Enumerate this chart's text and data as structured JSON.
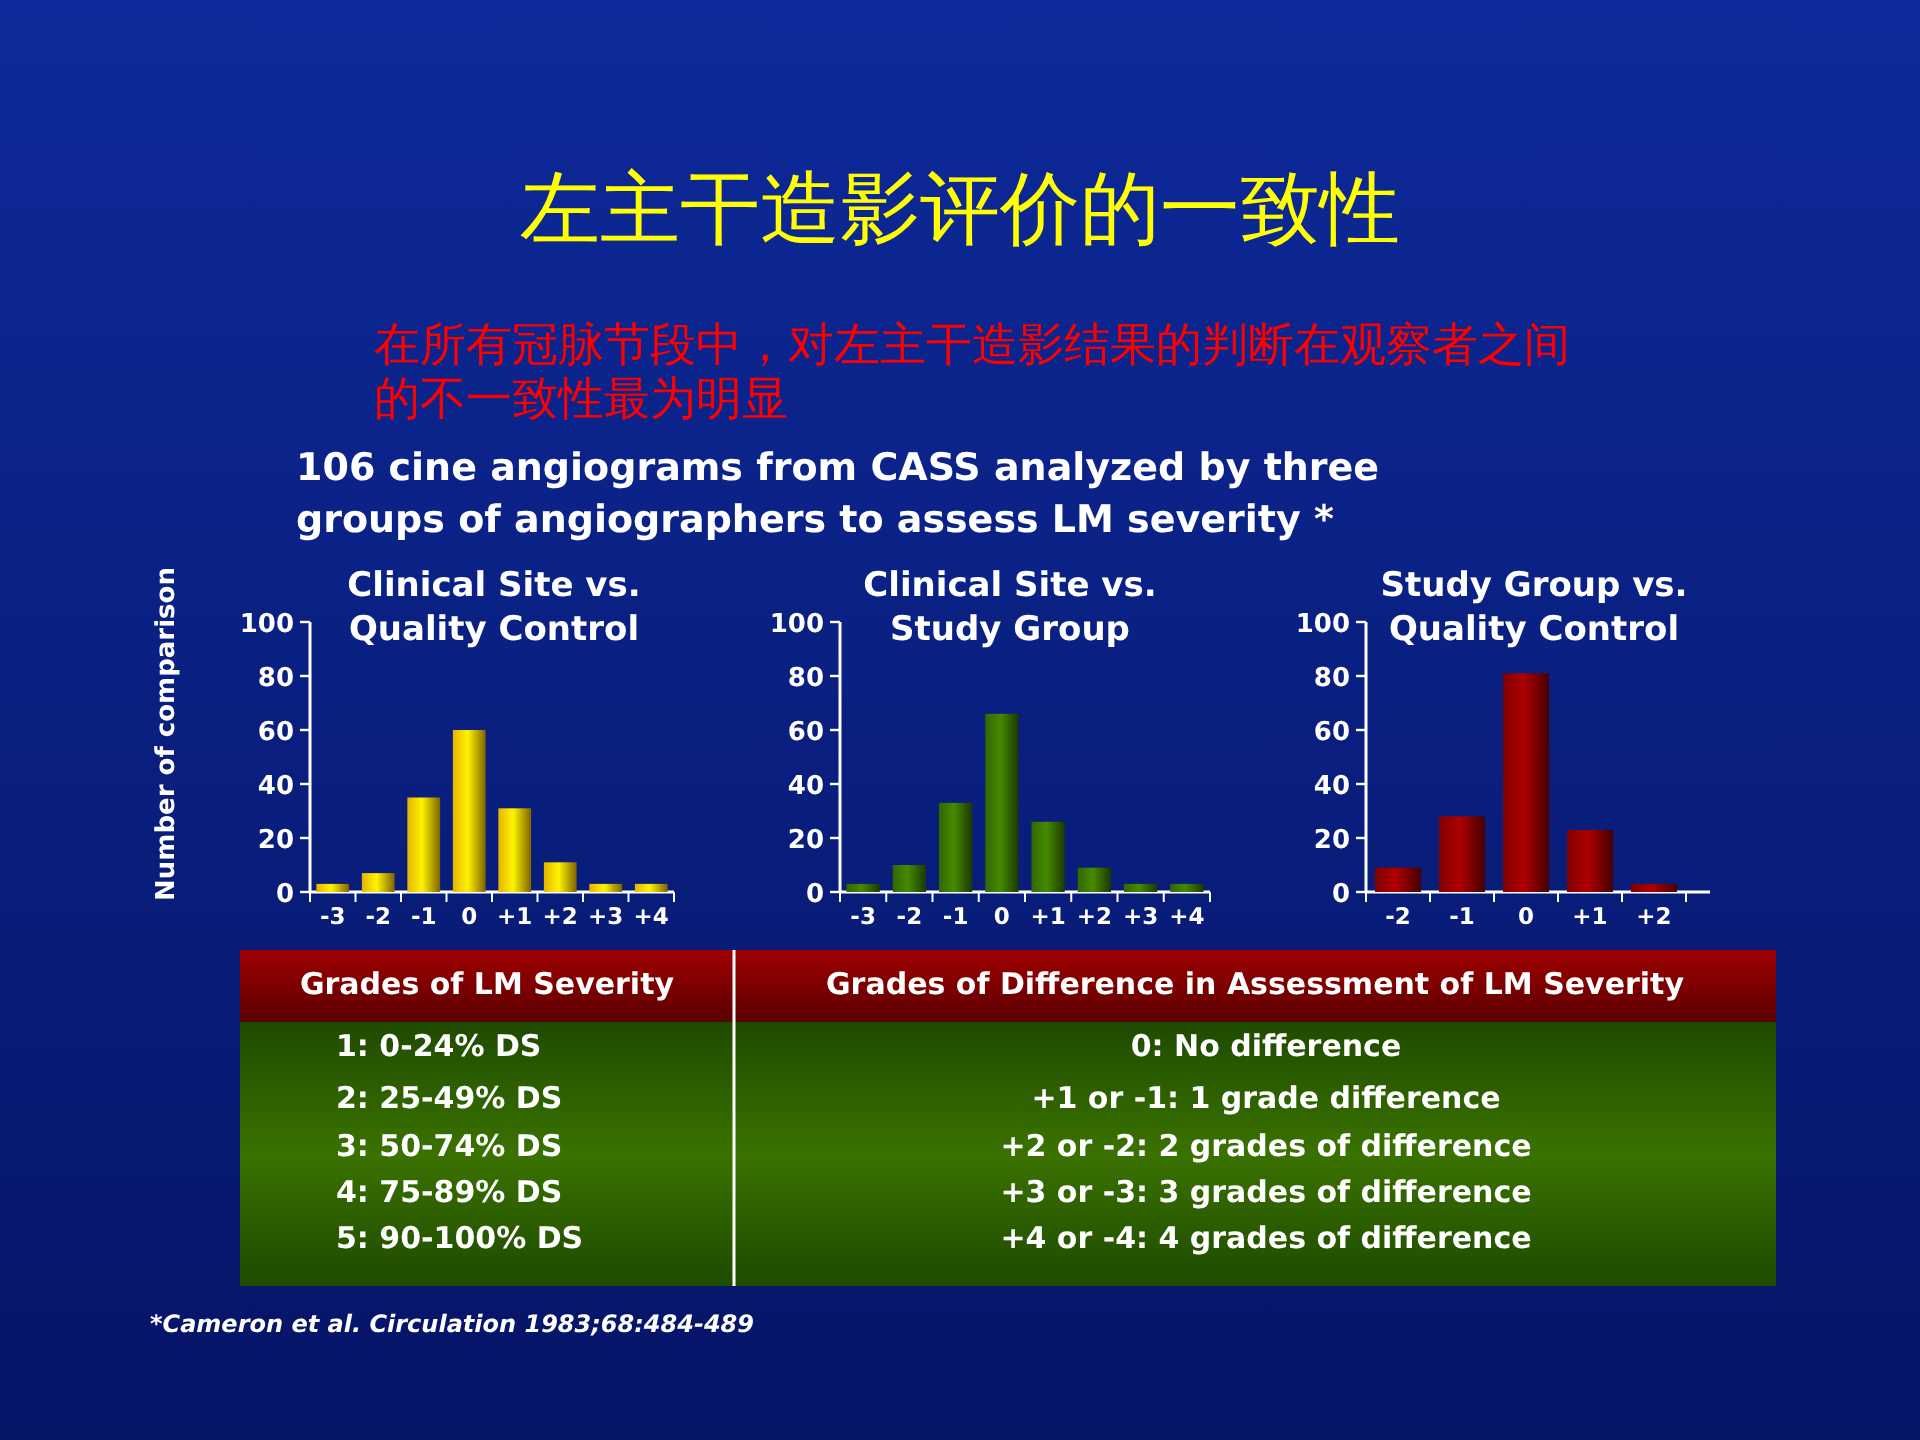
{
  "chart_data": [
    {
      "type": "other",
      "title": "左主干造影评价的一致性",
      "subtitle": "在所有冠脉节段中，对左主干造影结果的判断在观察者之间的不一致性最为明显",
      "annotations": [
        "106 cine angiograms from CASS analyzed by three groups of angiographers to assess LM severity *"
      ]
    },
    {
      "type": "bar",
      "title": "Clinical Site vs. Quality Control",
      "ylabel": "Number of comparison",
      "categories": [
        "-3",
        "-2",
        "-1",
        "0",
        "+1",
        "+2",
        "+3",
        "+4"
      ],
      "values": [
        3,
        7,
        35,
        60,
        31,
        11,
        3,
        3
      ],
      "color": "#e6b400",
      "ylim": [
        0,
        100
      ],
      "yticks": [
        0,
        20,
        40,
        60,
        80,
        100
      ]
    },
    {
      "type": "bar",
      "title": "Clinical Site vs. Study Group",
      "categories": [
        "-3",
        "-2",
        "-1",
        "0",
        "+1",
        "+2",
        "+3",
        "+4"
      ],
      "values": [
        3,
        10,
        33,
        66,
        26,
        9,
        3,
        3
      ],
      "color": "#336600",
      "ylim": [
        0,
        100
      ],
      "yticks": [
        0,
        20,
        40,
        60,
        80,
        100
      ]
    },
    {
      "type": "bar",
      "title": "Study Group vs. Quality Control",
      "categories": [
        "-2",
        "-1",
        "0",
        "+1",
        "+2"
      ],
      "values": [
        9,
        28,
        81,
        23,
        3
      ],
      "color": "#800000",
      "ylim": [
        0,
        100
      ],
      "yticks": [
        0,
        20,
        40,
        60,
        80,
        100
      ]
    },
    {
      "type": "other",
      "annotations": [
        "Grades of LM Severity",
        "Grades of Difference in Assessment of LM Severity",
        "1: 0-24% DS",
        "2: 25-49% DS",
        "3: 50-74% DS",
        "4: 75-89% DS",
        "5: 90-100% DS",
        "0:  No difference",
        "+1 or -1:  1 grade difference",
        "+2 or -2:  2 grades of difference",
        "+3 or -3:  3 grades of difference",
        "+4 or -4:  4 grades of difference",
        "*Cameron et al. Circulation 1983;68:484-489"
      ]
    }
  ]
}
